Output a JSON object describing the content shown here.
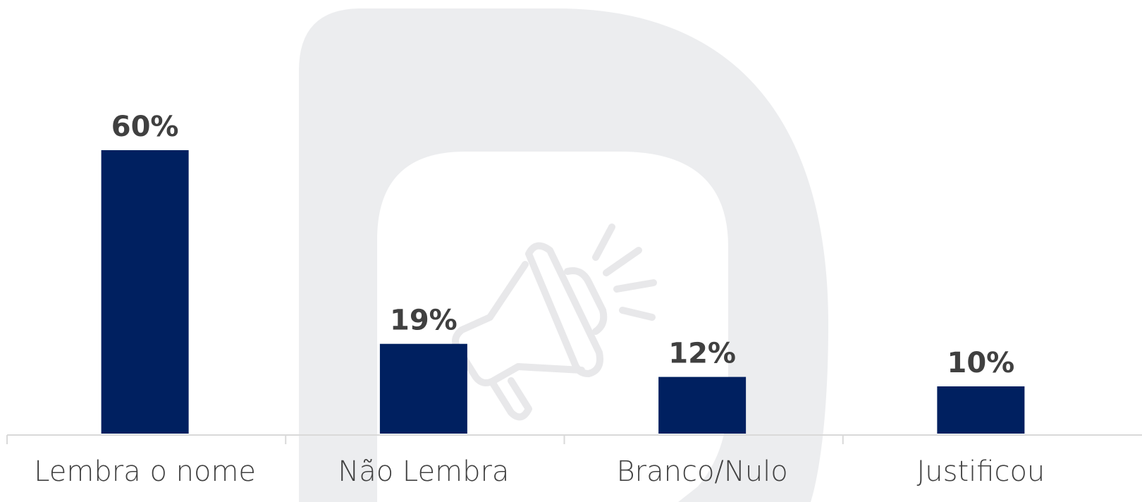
{
  "chart_data": {
    "type": "bar",
    "categories": [
      "Lembra o nome",
      "Não Lembra",
      "Branco/Nulo",
      "Justificou"
    ],
    "values": [
      60,
      19,
      12,
      10
    ],
    "value_labels": [
      "60%",
      "19%",
      "12%",
      "10%"
    ],
    "color": "#002060"
  }
}
